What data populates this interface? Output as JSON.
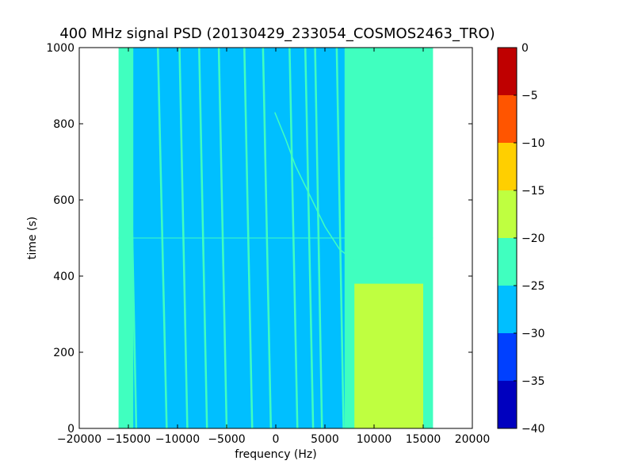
{
  "chart_data": {
    "type": "heatmap",
    "title": "400 MHz signal PSD (20130429_233054_COSMOS2463_TRO)",
    "xlabel": "frequency (Hz)",
    "ylabel": "time (s)",
    "xlim": [
      -20000,
      20000
    ],
    "ylim": [
      0,
      1000
    ],
    "x_ticks": [
      -20000,
      -15000,
      -10000,
      -5000,
      0,
      5000,
      10000,
      15000,
      20000
    ],
    "y_ticks": [
      0,
      200,
      400,
      600,
      800,
      1000
    ],
    "data_extent": {
      "x": [
        -16000,
        16000
      ],
      "y": [
        0,
        1000
      ]
    },
    "grid": false,
    "colorbar": {
      "range": [
        -40,
        0
      ],
      "ticks": [
        0,
        -5,
        -10,
        -15,
        -20,
        -25,
        -30,
        -35,
        -40
      ],
      "levels": [
        {
          "from": -40,
          "to": -35,
          "color": "#0000bf"
        },
        {
          "from": -35,
          "to": -30,
          "color": "#0040ff"
        },
        {
          "from": -30,
          "to": -25,
          "color": "#00bfff"
        },
        {
          "from": -25,
          "to": -20,
          "color": "#40ffbf"
        },
        {
          "from": -20,
          "to": -15,
          "color": "#bfff40"
        },
        {
          "from": -15,
          "to": -10,
          "color": "#ffcf00"
        },
        {
          "from": -10,
          "to": -5,
          "color": "#ff5500"
        },
        {
          "from": -5,
          "to": 0,
          "color": "#bf0000"
        }
      ]
    },
    "regions": [
      {
        "name": "background",
        "x": [
          -16000,
          16000
        ],
        "y": [
          0,
          1000
        ],
        "level": -22.5
      },
      {
        "name": "main band",
        "x": [
          -14500,
          7000
        ],
        "y": [
          0,
          1000
        ],
        "level": -27.5
      },
      {
        "name": "noise band",
        "x": [
          8000,
          15000
        ],
        "y": [
          0,
          380
        ],
        "level": -17.5
      }
    ],
    "tracks": [
      {
        "x_top": -15000,
        "x_bottom": -14200
      },
      {
        "x_top": -12000,
        "x_bottom": -11100
      },
      {
        "x_top": -9800,
        "x_bottom": -9000
      },
      {
        "x_top": -7800,
        "x_bottom": -7000
      },
      {
        "x_top": -5800,
        "x_bottom": -5000
      },
      {
        "x_top": -3200,
        "x_bottom": -2400
      },
      {
        "x_top": -1300,
        "x_bottom": -500
      },
      {
        "x_top": 1400,
        "x_bottom": 2200
      },
      {
        "x_top": 3000,
        "x_bottom": 3800
      },
      {
        "x_top": 4000,
        "x_bottom": 4700
      },
      {
        "x_top": 6200,
        "x_bottom": 6900
      }
    ],
    "curve": {
      "points": [
        [
          -100,
          830
        ],
        [
          1000,
          760
        ],
        [
          2000,
          690
        ],
        [
          3500,
          610
        ],
        [
          5000,
          530
        ],
        [
          6500,
          470
        ],
        [
          8000,
          440
        ]
      ]
    },
    "artifact_line": {
      "y": 500
    }
  }
}
